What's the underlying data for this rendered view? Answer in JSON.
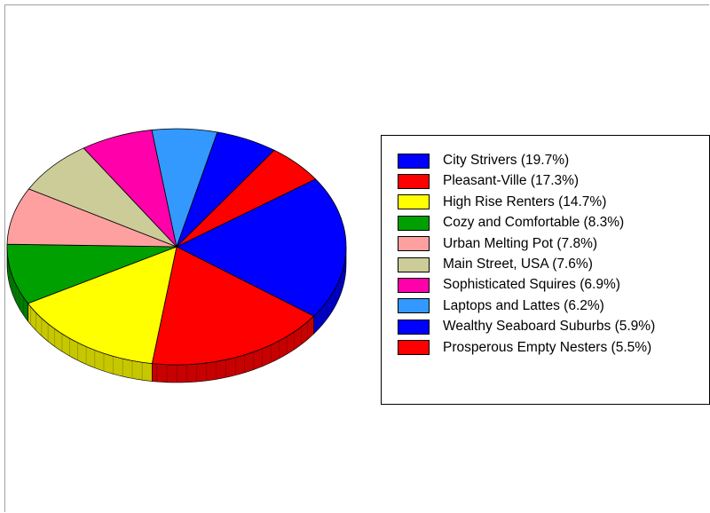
{
  "chart_data": {
    "type": "pie",
    "three_d": true,
    "legend_position": "right",
    "slices": [
      {
        "label": "City Strivers",
        "value": 19.7,
        "pct_label": "(19.7%)",
        "color": "#0000ff"
      },
      {
        "label": "Pleasant-Ville",
        "value": 17.3,
        "pct_label": "(17.3%)",
        "color": "#ff0000"
      },
      {
        "label": "High Rise Renters",
        "value": 14.7,
        "pct_label": "(14.7%)",
        "color": "#ffff00"
      },
      {
        "label": "Cozy and Comfortable",
        "value": 8.3,
        "pct_label": "(8.3%)",
        "color": "#00a000"
      },
      {
        "label": "Urban Melting Pot",
        "value": 7.8,
        "pct_label": "(7.8%)",
        "color": "#ffa0a0"
      },
      {
        "label": "Main Street, USA",
        "value": 7.6,
        "pct_label": "(7.6%)",
        "color": "#cccc99"
      },
      {
        "label": "Sophisticated Squires",
        "value": 6.9,
        "pct_label": "(6.9%)",
        "color": "#ff00aa"
      },
      {
        "label": "Laptops and Lattes",
        "value": 6.2,
        "pct_label": "(6.2%)",
        "color": "#3399ff"
      },
      {
        "label": "Wealthy Seaboard Suburbs",
        "value": 5.9,
        "pct_label": "(5.9%)",
        "color": "#0000ff"
      },
      {
        "label": "Prosperous Empty Nesters",
        "value": 5.5,
        "pct_label": "(5.5%)",
        "color": "#ff0000"
      }
    ]
  }
}
